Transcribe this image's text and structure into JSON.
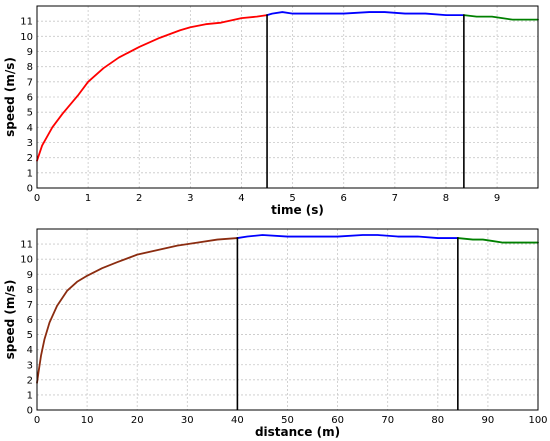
{
  "chart_data": [
    {
      "type": "line",
      "xlabel": "time (s)",
      "ylabel": "speed (m/s)",
      "xlim": [
        0,
        9.8
      ],
      "ylim": [
        0,
        12
      ],
      "x_ticks": [
        0,
        1,
        2,
        3,
        4,
        5,
        6,
        7,
        8,
        9
      ],
      "y_ticks": [
        0,
        1,
        2,
        3,
        4,
        5,
        6,
        7,
        8,
        9,
        10,
        11
      ],
      "grid": true,
      "vertical_lines": [
        4.5,
        8.35
      ],
      "series": [
        {
          "color": "#ff0000",
          "x": [
            0,
            0.1,
            0.3,
            0.5,
            0.8,
            1.0,
            1.3,
            1.6,
            2.0,
            2.4,
            2.8,
            3.0,
            3.3,
            3.6,
            4.0,
            4.3,
            4.5
          ],
          "y": [
            1.8,
            2.8,
            4.0,
            4.9,
            6.1,
            7.0,
            7.9,
            8.6,
            9.3,
            9.9,
            10.4,
            10.6,
            10.8,
            10.9,
            11.2,
            11.3,
            11.4
          ]
        },
        {
          "color": "#0000ff",
          "x": [
            4.5,
            4.6,
            4.8,
            5.0,
            5.5,
            6.0,
            6.5,
            6.8,
            7.2,
            7.6,
            8.0,
            8.35
          ],
          "y": [
            11.4,
            11.5,
            11.6,
            11.5,
            11.5,
            11.5,
            11.6,
            11.6,
            11.5,
            11.5,
            11.4,
            11.4
          ]
        },
        {
          "color": "#008000",
          "x": [
            8.35,
            8.6,
            8.9,
            9.1,
            9.3,
            9.5,
            9.8
          ],
          "y": [
            11.4,
            11.3,
            11.3,
            11.2,
            11.1,
            11.1,
            11.1
          ]
        }
      ]
    },
    {
      "type": "line",
      "xlabel": "distance (m)",
      "ylabel": "speed (m/s)",
      "xlim": [
        0,
        100
      ],
      "ylim": [
        0,
        12
      ],
      "x_ticks": [
        0,
        10,
        20,
        30,
        40,
        50,
        60,
        70,
        80,
        90,
        100
      ],
      "y_ticks": [
        0,
        1,
        2,
        3,
        4,
        5,
        6,
        7,
        8,
        9,
        10,
        11
      ],
      "grid": true,
      "vertical_lines": [
        40,
        84
      ],
      "series": [
        {
          "color": "#8b2c10",
          "x": [
            0,
            0.3,
            0.8,
            1.5,
            2.5,
            4,
            6,
            8,
            10,
            13,
            16,
            20,
            24,
            28,
            32,
            36,
            40
          ],
          "y": [
            1.8,
            2.5,
            3.6,
            4.7,
            5.8,
            6.9,
            7.9,
            8.5,
            8.9,
            9.4,
            9.8,
            10.3,
            10.6,
            10.9,
            11.1,
            11.3,
            11.4
          ]
        },
        {
          "color": "#0000ff",
          "x": [
            40,
            42,
            45,
            50,
            55,
            60,
            65,
            68,
            72,
            76,
            80,
            84
          ],
          "y": [
            11.4,
            11.5,
            11.6,
            11.5,
            11.5,
            11.5,
            11.6,
            11.6,
            11.5,
            11.5,
            11.4,
            11.4
          ]
        },
        {
          "color": "#008000",
          "x": [
            84,
            87,
            89,
            91,
            93,
            95,
            97,
            100
          ],
          "y": [
            11.4,
            11.3,
            11.3,
            11.2,
            11.1,
            11.1,
            11.1,
            11.1
          ]
        }
      ]
    }
  ]
}
